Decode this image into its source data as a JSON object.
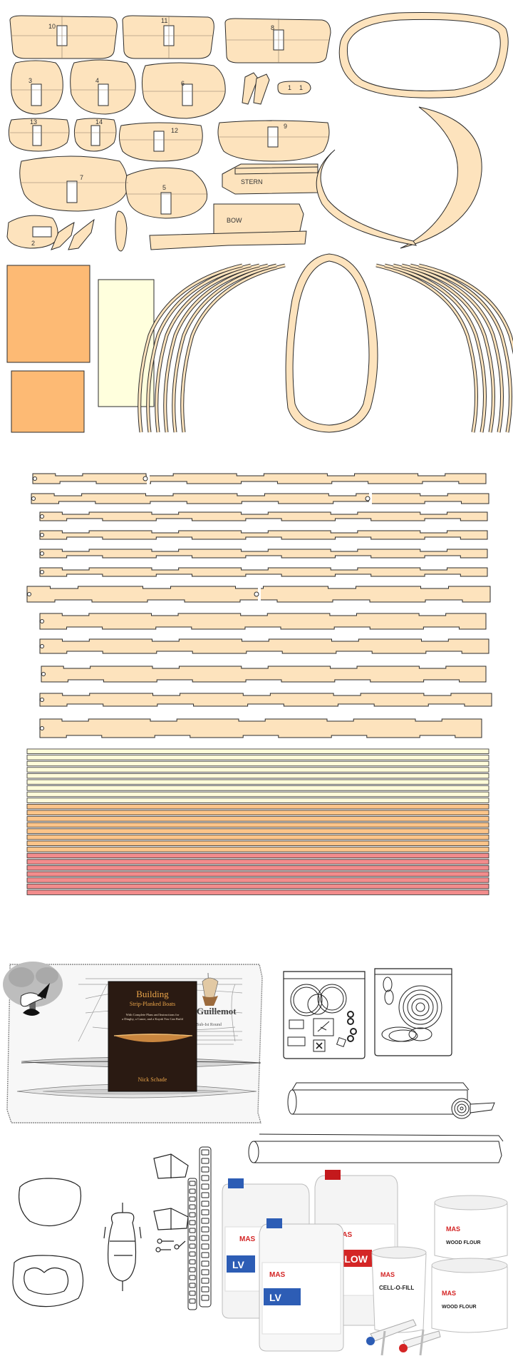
{
  "colors": {
    "wood": "#FDE3BD",
    "outline": "#2b2b2b",
    "orange": "#FDBA74",
    "cream": "#FFFFDD",
    "strip_light": "#FFFBD9",
    "strip_orange": "#FCC489",
    "strip_red": "#F28C8C",
    "book_cover": "#2a1a12",
    "book_title": "#E9A449"
  },
  "parts": {
    "station_labels": [
      "10",
      "11",
      "8",
      "3",
      "4",
      "6",
      "13",
      "14",
      "12",
      "9",
      "7",
      "5",
      "2"
    ],
    "small_labels": [
      "1",
      "1"
    ],
    "stern_label": "STERN",
    "bow_label": "BOW"
  },
  "book": {
    "title_line1": "Building",
    "title_line2": "Strip-Planked Boats",
    "subtitle_line1": "With Complete Plans and Instructions for",
    "subtitle_line2": "a Dinghy, a Canoe, and a Kayak You Can Build",
    "author": "Nick Schade",
    "poster_title": "Guillemot",
    "poster_sub": "Sub-Ist Round"
  },
  "products": {
    "jug_small_brand": "MAS",
    "jug_small_label": "LV",
    "jug_front_brand": "MAS",
    "jug_front_label": "LV",
    "jug_big_brand": "MAS",
    "jug_big_label": "SLOW",
    "tub1_brand": "MAS",
    "tub1_label": "CELL-O-FILL",
    "tub2_brand": "MAS",
    "tub2_label": "WOOD FLOUR",
    "tub3_brand": "MAS",
    "tub3_label": "WOOD FLOUR"
  }
}
